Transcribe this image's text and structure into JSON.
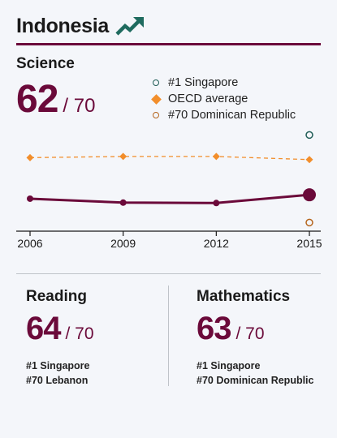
{
  "country": "Indonesia",
  "icons": {
    "trend": "trend-up-icon"
  },
  "colors": {
    "brand": "#6b0a3a",
    "oecd": "#f28e2b",
    "top": "#1f5c56",
    "bottom": "#b5651d",
    "trend_icon": "#1f6b5f"
  },
  "science": {
    "title": "Science",
    "rank": "62",
    "total": "/ 70"
  },
  "chart_data": {
    "type": "line",
    "title": "Science",
    "x": [
      "2006",
      "2009",
      "2012",
      "2015"
    ],
    "series": [
      {
        "name": "#1 Singapore",
        "values": [
          null,
          null,
          null,
          556
        ],
        "style": "open-circle"
      },
      {
        "name": "OECD average",
        "values": [
          498,
          501,
          501,
          493
        ],
        "style": "dashed-diamond"
      },
      {
        "name": "Indonesia",
        "values": [
          393,
          383,
          382,
          403
        ],
        "style": "solid"
      },
      {
        "name": "#70 Dominican Republic",
        "values": [
          null,
          null,
          null,
          332
        ],
        "style": "open-circle"
      }
    ],
    "ylim": [
      310,
      590
    ]
  },
  "reading": {
    "title": "Reading",
    "rank": "64",
    "total": "/ 70",
    "top_label": "#1 Singapore",
    "bottom_label": "#70 Lebanon"
  },
  "mathematics": {
    "title": "Mathematics",
    "rank": "63",
    "total": "/ 70",
    "top_label": "#1 Singapore",
    "bottom_label": "#70 Dominican Republic"
  }
}
